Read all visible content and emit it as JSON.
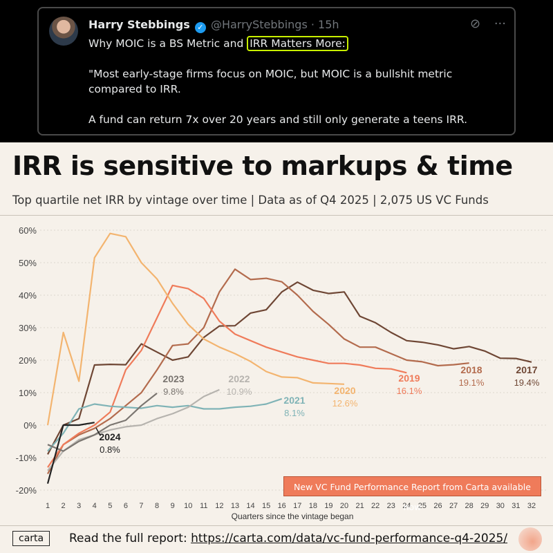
{
  "tweet": {
    "name": "Harry Stebbings",
    "verified_icon": "verified-badge-icon",
    "handle_time": "@HarryStebbings · 15h",
    "headline_pre": "Why MOIC is a BS Metric and ",
    "headline_highlight": "IRR Matters More:",
    "para1": "\"Most early-stage firms focus on MOIC, but MOIC is a bullshit metric compared to IRR.",
    "para2": "A fund can return 7x over 20 years and still only generate a teens IRR.",
    "icons": [
      "grok-icon",
      "more-icon"
    ]
  },
  "chart_data": {
    "type": "line",
    "title": "IRR is sensitive to markups & time",
    "subtitle": "Top quartile net IRR by vintage over time | Data as of Q4 2025 | 2,075 US VC Funds",
    "xlabel": "Quarters since the vintage began",
    "ylabel": "",
    "x_ticks": [
      1,
      2,
      3,
      4,
      5,
      6,
      7,
      8,
      9,
      10,
      11,
      12,
      13,
      14,
      15,
      16,
      17,
      18,
      19,
      20,
      21,
      22,
      23,
      24,
      25,
      26,
      27,
      28,
      29,
      30,
      31,
      32
    ],
    "ylim": [
      -20,
      60
    ],
    "y_ticks": [
      "60%",
      "50%",
      "40%",
      "30%",
      "20%",
      "10%",
      "0%",
      "-10%",
      "-20%"
    ],
    "grid": true,
    "series": [
      {
        "name": "2017",
        "label": "19.4%",
        "color": "#6e4634",
        "values": [
          -9,
          0,
          2,
          18.5,
          18.7,
          18.6,
          25,
          22.5,
          20,
          21,
          27,
          30.5,
          30.6,
          34.5,
          35.5,
          41,
          44,
          41.5,
          40.5,
          41,
          33.5,
          31.5,
          28.5,
          26,
          25.5,
          24.7,
          23.5,
          24.2,
          22.8,
          20.6,
          20.5,
          19.4
        ]
      },
      {
        "name": "2018",
        "label": "19.1%",
        "color": "#b36b4d",
        "values": [
          -15,
          -6,
          -3,
          -1,
          2,
          6,
          10,
          17,
          24.5,
          25,
          30,
          41,
          48,
          44.8,
          45.2,
          44.1,
          40,
          35,
          31,
          26.5,
          24,
          24,
          22,
          20,
          19.5,
          18.3,
          18.6,
          19.1
        ]
      },
      {
        "name": "2019",
        "label": "16.1%",
        "color": "#ef7b5a",
        "values": [
          -13,
          -6,
          -2.5,
          0,
          4,
          17,
          23,
          33,
          43,
          42,
          39,
          32,
          28,
          26,
          24,
          22.5,
          21,
          20,
          19,
          19,
          18.5,
          17.5,
          17.3,
          16.1
        ]
      },
      {
        "name": "2020",
        "label": "12.6%",
        "color": "#f3b46f",
        "values": [
          0,
          28.5,
          13.5,
          51.5,
          59,
          58,
          50,
          45,
          37.5,
          31,
          26.5,
          24,
          22,
          19.6,
          16.5,
          14.8,
          14.6,
          13,
          12.8,
          12.6
        ]
      },
      {
        "name": "2021",
        "label": "8.1%",
        "color": "#7fb3b6",
        "values": [
          -8,
          -2.5,
          5,
          6.5,
          5.8,
          5.5,
          5.2,
          6,
          5.5,
          6,
          5,
          5,
          5.5,
          5.8,
          6.5,
          8.1
        ]
      },
      {
        "name": "2022",
        "label": "10.9%",
        "color": "#b6b3ae",
        "values": [
          -14,
          -8,
          -4.5,
          -3,
          -1.5,
          -0.5,
          0,
          2,
          3.5,
          5.5,
          8.8,
          10.9
        ]
      },
      {
        "name": "2023",
        "label": "9.8%",
        "color": "#7a7570",
        "values": [
          -6,
          -8,
          -5,
          -3,
          0,
          1.5,
          6,
          9.8
        ]
      },
      {
        "name": "2024",
        "label": "0.8%",
        "color": "#222222",
        "values": [
          -18,
          0,
          0,
          0.8
        ]
      }
    ]
  },
  "callout": "New VC Fund Performance Report from Carta available now",
  "footer": {
    "logo": "carta",
    "text": "Read the full report: ",
    "link": "https://carta.com/data/vc-fund-performance-q4-2025/"
  }
}
